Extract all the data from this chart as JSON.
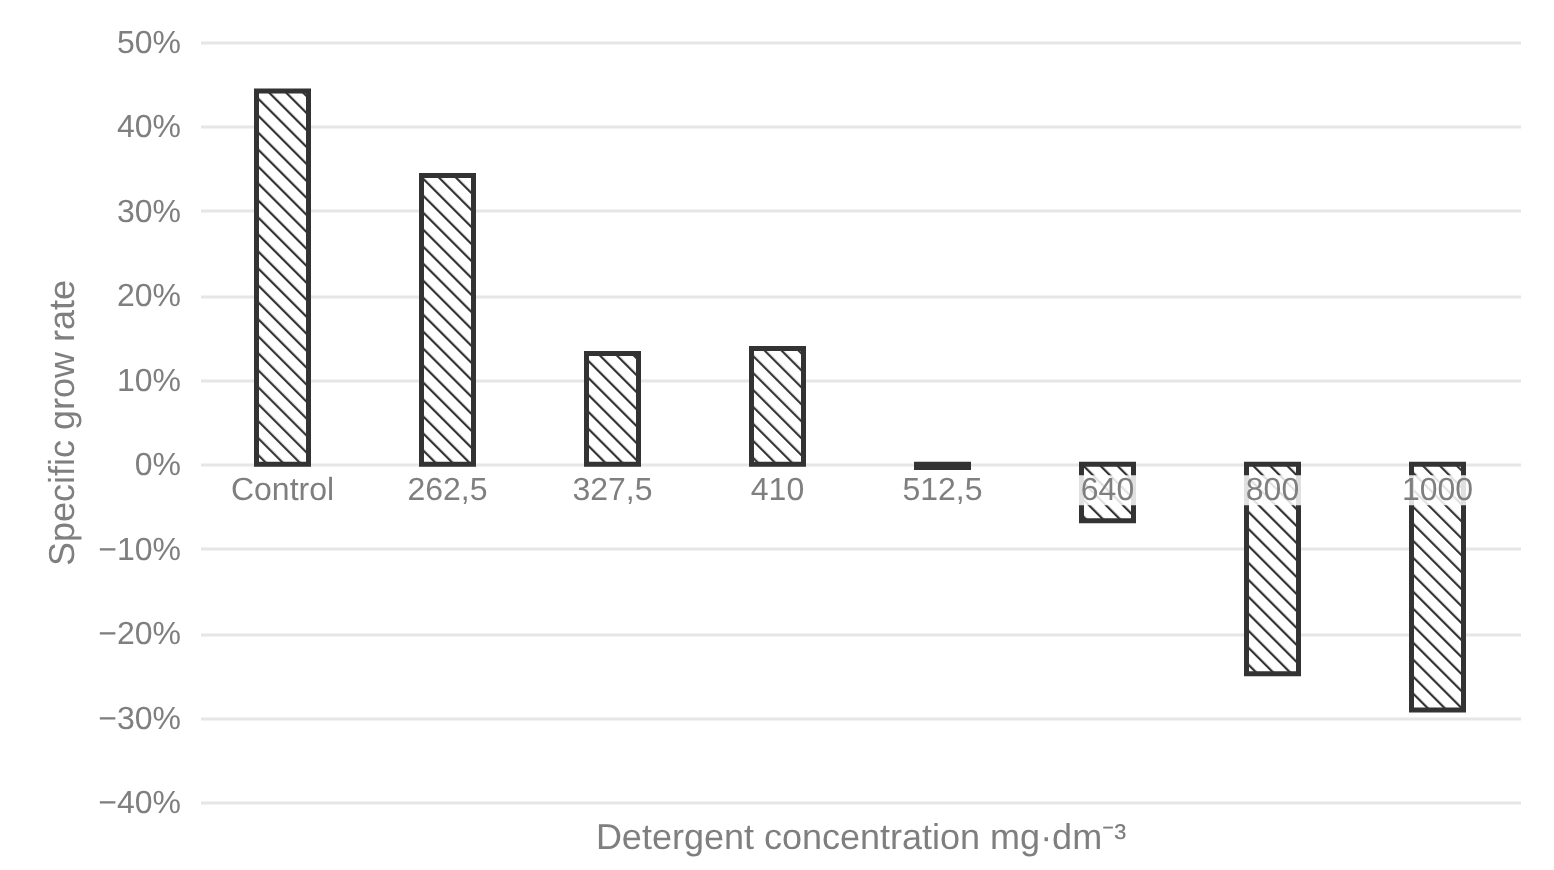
{
  "chart_data": {
    "type": "bar",
    "xlabel": "Detergent concentration mg·dm⁻³",
    "ylabel": "Specific grow rate",
    "categories": [
      "Control",
      "262,5",
      "327,5",
      "410",
      "512,5",
      "640",
      "800",
      "1000"
    ],
    "values": [
      44.2,
      34.2,
      13.1,
      13.7,
      -0.4,
      -6.7,
      -24.8,
      -29.1
    ],
    "color": "#333333",
    "ylim": [
      -40,
      50
    ],
    "yticks": [
      {
        "value": -40,
        "label": "−40%"
      },
      {
        "value": -30,
        "label": "−30%"
      },
      {
        "value": -20,
        "label": "−20%"
      },
      {
        "value": -10,
        "label": "−10%"
      },
      {
        "value": 0,
        "label": "0%"
      },
      {
        "value": 10,
        "label": "10%"
      },
      {
        "value": 20,
        "label": "20%"
      },
      {
        "value": 30,
        "label": "30%"
      },
      {
        "value": 40,
        "label": "40%"
      },
      {
        "value": 50,
        "label": "50%"
      }
    ],
    "grid": "y"
  }
}
